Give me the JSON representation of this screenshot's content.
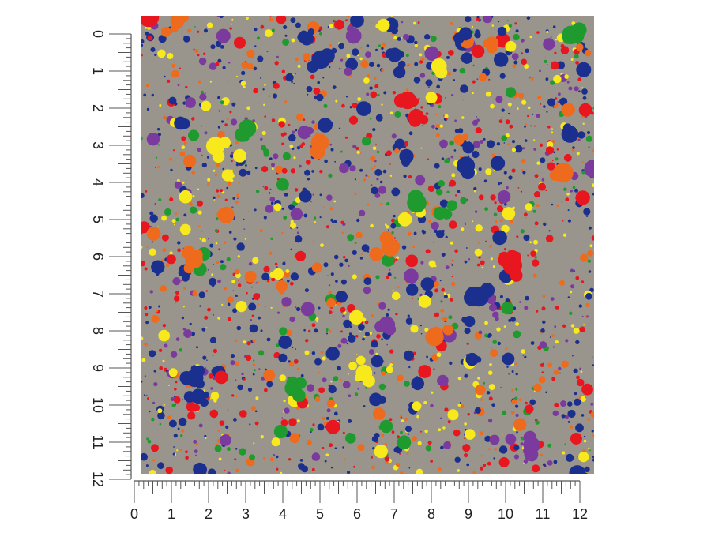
{
  "colors": {
    "background": "#9a958c",
    "blue": "#1b2f8f",
    "red": "#e8161e",
    "yellow": "#f7e91b",
    "orange": "#ee6a1c",
    "green": "#1f9a2e",
    "purple": "#7a3a9e"
  },
  "swatch": {
    "name": "paint-splatter-pattern",
    "palette": [
      "blue",
      "red",
      "yellow",
      "orange",
      "green",
      "purple"
    ]
  },
  "ruler": {
    "vertical_labels": [
      "0",
      "1",
      "2",
      "3",
      "4",
      "5",
      "6",
      "7",
      "8",
      "9",
      "10",
      "11",
      "12"
    ],
    "horizontal_labels": [
      "0",
      "1",
      "2",
      "3",
      "4",
      "5",
      "6",
      "7",
      "8",
      "9",
      "10",
      "11",
      "12"
    ]
  }
}
